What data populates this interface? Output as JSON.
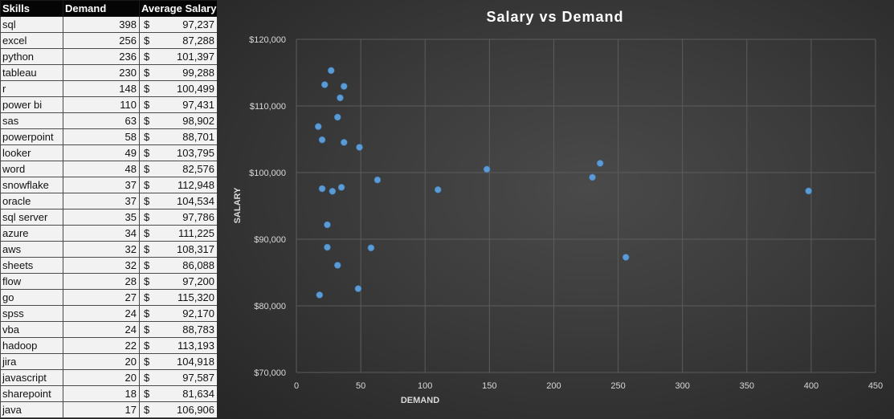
{
  "table": {
    "headers": {
      "skill": "Skills",
      "demand": "Demand",
      "salary": "Average Salary"
    },
    "currency": "$",
    "rows": [
      {
        "skill": "sql",
        "demand": "398",
        "salary": "97,237"
      },
      {
        "skill": "excel",
        "demand": "256",
        "salary": "87,288"
      },
      {
        "skill": "python",
        "demand": "236",
        "salary": "101,397"
      },
      {
        "skill": "tableau",
        "demand": "230",
        "salary": "99,288"
      },
      {
        "skill": "r",
        "demand": "148",
        "salary": "100,499"
      },
      {
        "skill": "power bi",
        "demand": "110",
        "salary": "97,431"
      },
      {
        "skill": "sas",
        "demand": "63",
        "salary": "98,902"
      },
      {
        "skill": "powerpoint",
        "demand": "58",
        "salary": "88,701"
      },
      {
        "skill": "looker",
        "demand": "49",
        "salary": "103,795"
      },
      {
        "skill": "word",
        "demand": "48",
        "salary": "82,576"
      },
      {
        "skill": "snowflake",
        "demand": "37",
        "salary": "112,948"
      },
      {
        "skill": "oracle",
        "demand": "37",
        "salary": "104,534"
      },
      {
        "skill": "sql server",
        "demand": "35",
        "salary": "97,786"
      },
      {
        "skill": "azure",
        "demand": "34",
        "salary": "111,225"
      },
      {
        "skill": "aws",
        "demand": "32",
        "salary": "108,317"
      },
      {
        "skill": "sheets",
        "demand": "32",
        "salary": "86,088"
      },
      {
        "skill": "flow",
        "demand": "28",
        "salary": "97,200"
      },
      {
        "skill": "go",
        "demand": "27",
        "salary": "115,320"
      },
      {
        "skill": "spss",
        "demand": "24",
        "salary": "92,170"
      },
      {
        "skill": "vba",
        "demand": "24",
        "salary": "88,783"
      },
      {
        "skill": "hadoop",
        "demand": "22",
        "salary": "113,193"
      },
      {
        "skill": "jira",
        "demand": "20",
        "salary": "104,918"
      },
      {
        "skill": "javascript",
        "demand": "20",
        "salary": "97,587"
      },
      {
        "skill": "sharepoint",
        "demand": "18",
        "salary": "81,634"
      },
      {
        "skill": "java",
        "demand": "17",
        "salary": "106,906"
      }
    ]
  },
  "chart_data": {
    "type": "scatter",
    "title": "Salary vs Demand",
    "xlabel": "DEMAND",
    "ylabel": "SALARY",
    "xlim": [
      0,
      450
    ],
    "ylim": [
      70000,
      120000
    ],
    "x_ticks": [
      "0",
      "50",
      "100",
      "150",
      "200",
      "250",
      "300",
      "350",
      "400",
      "450"
    ],
    "x_tick_values": [
      0,
      50,
      100,
      150,
      200,
      250,
      300,
      350,
      400,
      450
    ],
    "y_ticks": [
      "$70,000",
      "$80,000",
      "$90,000",
      "$100,000",
      "$110,000",
      "$120,000"
    ],
    "y_tick_values": [
      70000,
      80000,
      90000,
      100000,
      110000,
      120000
    ],
    "grid": true,
    "legend": "none",
    "marker_color": "#5b9bd5",
    "background_color": "#3b3b3b",
    "points": [
      {
        "x": 398,
        "y": 97237
      },
      {
        "x": 256,
        "y": 87288
      },
      {
        "x": 236,
        "y": 101397
      },
      {
        "x": 230,
        "y": 99288
      },
      {
        "x": 148,
        "y": 100499
      },
      {
        "x": 110,
        "y": 97431
      },
      {
        "x": 63,
        "y": 98902
      },
      {
        "x": 58,
        "y": 88701
      },
      {
        "x": 49,
        "y": 103795
      },
      {
        "x": 48,
        "y": 82576
      },
      {
        "x": 37,
        "y": 112948
      },
      {
        "x": 37,
        "y": 104534
      },
      {
        "x": 35,
        "y": 97786
      },
      {
        "x": 34,
        "y": 111225
      },
      {
        "x": 32,
        "y": 108317
      },
      {
        "x": 32,
        "y": 86088
      },
      {
        "x": 28,
        "y": 97200
      },
      {
        "x": 27,
        "y": 115320
      },
      {
        "x": 24,
        "y": 92170
      },
      {
        "x": 24,
        "y": 88783
      },
      {
        "x": 22,
        "y": 113193
      },
      {
        "x": 20,
        "y": 104918
      },
      {
        "x": 20,
        "y": 97587
      },
      {
        "x": 18,
        "y": 81634
      },
      {
        "x": 17,
        "y": 106906
      }
    ]
  }
}
